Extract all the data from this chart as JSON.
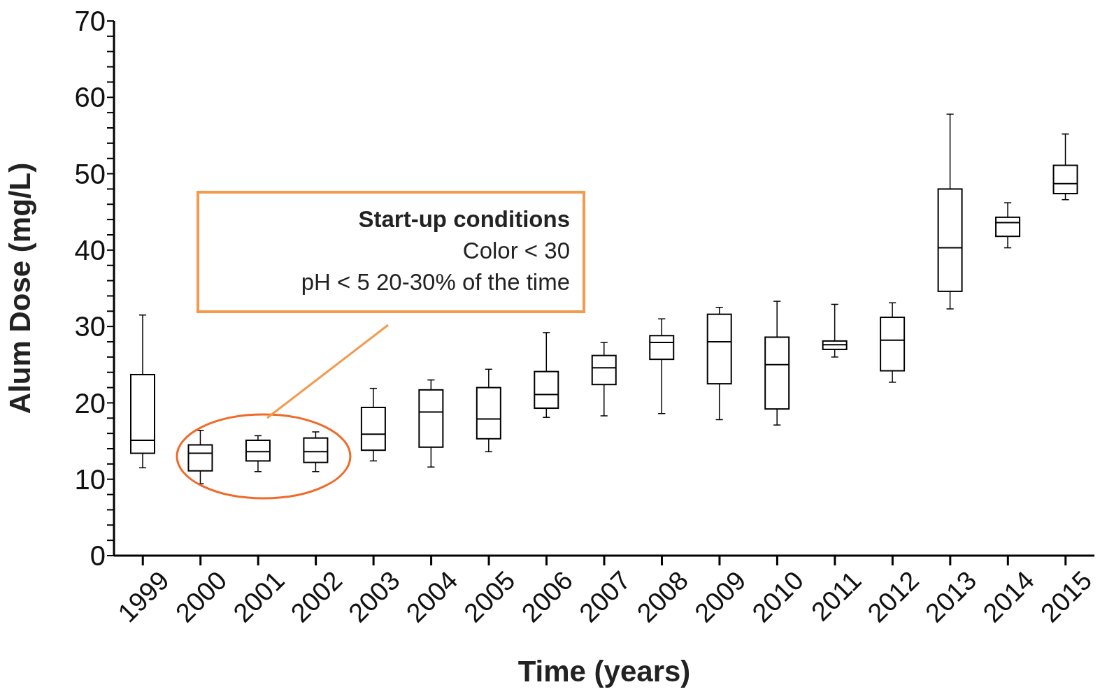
{
  "chart_data": {
    "type": "box",
    "xlabel": "Time (years)",
    "ylabel": "Alum Dose (mg/L)",
    "categories": [
      "1999",
      "2000",
      "2001",
      "2002",
      "2003",
      "2004",
      "2005",
      "2006",
      "2007",
      "2008",
      "2009",
      "2010",
      "2011",
      "2012",
      "2013",
      "2014",
      "2015"
    ],
    "boxes": [
      {
        "low": 11.5,
        "q1": 13.4,
        "median": 15.1,
        "q3": 23.7,
        "high": 31.5
      },
      {
        "low": 9.4,
        "q1": 11.1,
        "median": 13.4,
        "q3": 14.5,
        "high": 16.4
      },
      {
        "low": 11.0,
        "q1": 12.4,
        "median": 13.6,
        "q3": 15.1,
        "high": 15.7
      },
      {
        "low": 11.0,
        "q1": 12.2,
        "median": 13.6,
        "q3": 15.4,
        "high": 16.2
      },
      {
        "low": 12.4,
        "q1": 13.8,
        "median": 15.9,
        "q3": 19.4,
        "high": 21.9
      },
      {
        "low": 11.6,
        "q1": 14.2,
        "median": 18.8,
        "q3": 21.7,
        "high": 23.0
      },
      {
        "low": 13.6,
        "q1": 15.3,
        "median": 17.9,
        "q3": 22.0,
        "high": 24.4
      },
      {
        "low": 18.1,
        "q1": 19.3,
        "median": 21.1,
        "q3": 24.1,
        "high": 29.2
      },
      {
        "low": 18.3,
        "q1": 22.4,
        "median": 24.6,
        "q3": 26.2,
        "high": 27.9
      },
      {
        "low": 18.6,
        "q1": 25.7,
        "median": 27.9,
        "q3": 28.8,
        "high": 31.0
      },
      {
        "low": 17.8,
        "q1": 22.5,
        "median": 28.0,
        "q3": 31.6,
        "high": 32.5
      },
      {
        "low": 17.1,
        "q1": 19.2,
        "median": 25.0,
        "q3": 28.6,
        "high": 33.3
      },
      {
        "low": 26.0,
        "q1": 27.0,
        "median": 27.6,
        "q3": 28.1,
        "high": 32.9
      },
      {
        "low": 22.7,
        "q1": 24.2,
        "median": 28.2,
        "q3": 31.2,
        "high": 33.1
      },
      {
        "low": 32.3,
        "q1": 34.6,
        "median": 40.3,
        "q3": 48.0,
        "high": 57.8
      },
      {
        "low": 40.3,
        "q1": 41.8,
        "median": 43.6,
        "q3": 44.3,
        "high": 46.2
      },
      {
        "low": 46.6,
        "q1": 47.4,
        "median": 48.7,
        "q3": 51.1,
        "high": 55.2
      }
    ],
    "ylim": [
      0,
      70
    ],
    "yticks": [
      0,
      {
        "value": 2,
        "label": null
      },
      {
        "value": 4,
        "label": null
      },
      {
        "value": 6,
        "label": null
      },
      {
        "value": 8,
        "label": null
      },
      10,
      {
        "value": 12,
        "label": null
      },
      {
        "value": 14,
        "label": null
      },
      {
        "value": 16,
        "label": null
      },
      {
        "value": 18,
        "label": null
      },
      20,
      {
        "value": 22,
        "label": null
      },
      {
        "value": 24,
        "label": null
      },
      {
        "value": 26,
        "label": null
      },
      {
        "value": 28,
        "label": null
      },
      30,
      {
        "value": 32,
        "label": null
      },
      {
        "value": 34,
        "label": null
      },
      {
        "value": 36,
        "label": null
      },
      {
        "value": 38,
        "label": null
      },
      40,
      {
        "value": 42,
        "label": null
      },
      {
        "value": 44,
        "label": null
      },
      {
        "value": 46,
        "label": null
      },
      {
        "value": 48,
        "label": null
      },
      50,
      {
        "value": 52,
        "label": null
      },
      {
        "value": 54,
        "label": null
      },
      {
        "value": 56,
        "label": null
      },
      {
        "value": 58,
        "label": null
      },
      60,
      {
        "value": 62,
        "label": null
      },
      {
        "value": 64,
        "label": null
      },
      {
        "value": 66,
        "label": null
      },
      {
        "value": 68,
        "label": null
      },
      70
    ],
    "annotations": [
      "Start-up conditions",
      "Color < 30",
      "pH < 5 20-30% of the time"
    ],
    "grid": false,
    "legend": false
  }
}
